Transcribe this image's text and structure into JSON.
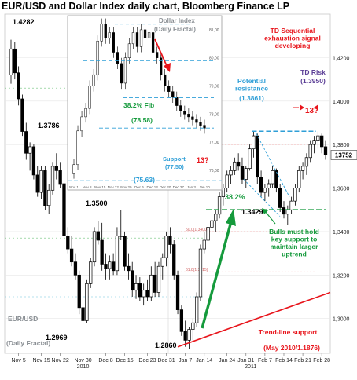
{
  "title": "EUR/USD  and Dollar Index daily chart, Bloomberg Finance LP",
  "chart_data": [
    {
      "type": "candlestick",
      "name": "EUR/USD",
      "caption": "EUR/USD",
      "caption2": "(Daily Fractal)",
      "x_ticks": [
        "Nov 5",
        "Nov 15",
        "Nov 22",
        "Nov 30",
        "Dec 8",
        "Dec 15",
        "Dec 23",
        "Dec 31",
        "Jan 7",
        "Jan 14",
        "Jan 24",
        "Jan 31",
        "Feb 7",
        "Feb 14",
        "Feb 21",
        "Feb 28"
      ],
      "year_labels": [
        "2010",
        "2011"
      ],
      "y_ticks": [
        "1,4200",
        "1,4000",
        "1,3800",
        "1,3600",
        "1,3400",
        "1,3200",
        "1,3000"
      ],
      "ylim": [
        1.284,
        1.44
      ],
      "current_price": "13752",
      "candles": [
        {
          "x": "Nov 3",
          "o": 1.412,
          "h": 1.4282,
          "l": 1.408,
          "c": 1.424
        },
        {
          "x": "Nov 4",
          "o": 1.424,
          "h": 1.427,
          "l": 1.41,
          "c": 1.413
        },
        {
          "x": "Nov 5",
          "o": 1.413,
          "h": 1.416,
          "l": 1.398,
          "c": 1.401
        },
        {
          "x": "Nov 8",
          "o": 1.401,
          "h": 1.403,
          "l": 1.384,
          "c": 1.386
        },
        {
          "x": "Nov 9",
          "o": 1.386,
          "h": 1.39,
          "l": 1.373,
          "c": 1.376
        },
        {
          "x": "Nov 10",
          "o": 1.376,
          "h": 1.381,
          "l": 1.368,
          "c": 1.379
        },
        {
          "x": "Nov 11",
          "o": 1.379,
          "h": 1.38,
          "l": 1.364,
          "c": 1.366
        },
        {
          "x": "Nov 12",
          "o": 1.366,
          "h": 1.37,
          "l": 1.356,
          "c": 1.358
        },
        {
          "x": "Nov 15",
          "o": 1.358,
          "h": 1.37,
          "l": 1.355,
          "c": 1.368
        },
        {
          "x": "Nov 16",
          "o": 1.368,
          "h": 1.37,
          "l": 1.35,
          "c": 1.352
        },
        {
          "x": "Nov 17",
          "o": 1.352,
          "h": 1.362,
          "l": 1.348,
          "c": 1.359
        },
        {
          "x": "Nov 18",
          "o": 1.359,
          "h": 1.372,
          "l": 1.357,
          "c": 1.37
        },
        {
          "x": "Nov 19",
          "o": 1.37,
          "h": 1.376,
          "l": 1.364,
          "c": 1.368
        },
        {
          "x": "Nov 22",
          "o": 1.368,
          "h": 1.372,
          "l": 1.36,
          "c": 1.362
        },
        {
          "x": "Nov 23",
          "o": 1.362,
          "h": 1.364,
          "l": 1.334,
          "c": 1.338
        },
        {
          "x": "Nov 24",
          "o": 1.338,
          "h": 1.342,
          "l": 1.33,
          "c": 1.332
        },
        {
          "x": "Nov 25",
          "o": 1.332,
          "h": 1.338,
          "l": 1.324,
          "c": 1.326
        },
        {
          "x": "Nov 26",
          "o": 1.326,
          "h": 1.33,
          "l": 1.318,
          "c": 1.32
        },
        {
          "x": "Nov 29",
          "o": 1.32,
          "h": 1.322,
          "l": 1.302,
          "c": 1.305
        },
        {
          "x": "Nov 30",
          "o": 1.305,
          "h": 1.31,
          "l": 1.2969,
          "c": 1.299
        },
        {
          "x": "Dec 1",
          "o": 1.299,
          "h": 1.318,
          "l": 1.298,
          "c": 1.316
        },
        {
          "x": "Dec 2",
          "o": 1.316,
          "h": 1.328,
          "l": 1.314,
          "c": 1.326
        },
        {
          "x": "Dec 3",
          "o": 1.326,
          "h": 1.342,
          "l": 1.324,
          "c": 1.34
        },
        {
          "x": "Dec 6",
          "o": 1.34,
          "h": 1.345,
          "l": 1.334,
          "c": 1.336
        },
        {
          "x": "Dec 7",
          "o": 1.336,
          "h": 1.344,
          "l": 1.322,
          "c": 1.325
        },
        {
          "x": "Dec 8",
          "o": 1.325,
          "h": 1.33,
          "l": 1.318,
          "c": 1.323
        },
        {
          "x": "Dec 9",
          "o": 1.323,
          "h": 1.329,
          "l": 1.318,
          "c": 1.326
        },
        {
          "x": "Dec 10",
          "o": 1.326,
          "h": 1.33,
          "l": 1.32,
          "c": 1.322
        },
        {
          "x": "Dec 13",
          "o": 1.322,
          "h": 1.342,
          "l": 1.32,
          "c": 1.338
        },
        {
          "x": "Dec 14",
          "o": 1.338,
          "h": 1.35,
          "l": 1.336,
          "c": 1.338
        },
        {
          "x": "Dec 15",
          "o": 1.338,
          "h": 1.34,
          "l": 1.322,
          "c": 1.324
        },
        {
          "x": "Dec 16",
          "o": 1.324,
          "h": 1.33,
          "l": 1.318,
          "c": 1.322
        },
        {
          "x": "Dec 17",
          "o": 1.322,
          "h": 1.326,
          "l": 1.31,
          "c": 1.313
        },
        {
          "x": "Dec 20",
          "o": 1.313,
          "h": 1.32,
          "l": 1.309,
          "c": 1.316
        },
        {
          "x": "Dec 21",
          "o": 1.316,
          "h": 1.319,
          "l": 1.308,
          "c": 1.31
        },
        {
          "x": "Dec 22",
          "o": 1.31,
          "h": 1.316,
          "l": 1.306,
          "c": 1.313
        },
        {
          "x": "Dec 23",
          "o": 1.313,
          "h": 1.318,
          "l": 1.308,
          "c": 1.31
        },
        {
          "x": "Dec 27",
          "o": 1.31,
          "h": 1.324,
          "l": 1.308,
          "c": 1.32
        },
        {
          "x": "Dec 28",
          "o": 1.32,
          "h": 1.326,
          "l": 1.31,
          "c": 1.312
        },
        {
          "x": "Dec 29",
          "o": 1.312,
          "h": 1.326,
          "l": 1.31,
          "c": 1.324
        },
        {
          "x": "Dec 30",
          "o": 1.324,
          "h": 1.33,
          "l": 1.318,
          "c": 1.328
        },
        {
          "x": "Dec 31",
          "o": 1.328,
          "h": 1.34,
          "l": 1.324,
          "c": 1.338
        },
        {
          "x": "Jan 3",
          "o": 1.338,
          "h": 1.342,
          "l": 1.33,
          "c": 1.334
        },
        {
          "x": "Jan 4",
          "o": 1.334,
          "h": 1.336,
          "l": 1.318,
          "c": 1.32
        },
        {
          "x": "Jan 5",
          "o": 1.32,
          "h": 1.322,
          "l": 1.302,
          "c": 1.304
        },
        {
          "x": "Jan 6",
          "o": 1.304,
          "h": 1.306,
          "l": 1.292,
          "c": 1.294
        },
        {
          "x": "Jan 7",
          "o": 1.294,
          "h": 1.299,
          "l": 1.287,
          "c": 1.29
        },
        {
          "x": "Jan 10",
          "o": 1.29,
          "h": 1.296,
          "l": 1.286,
          "c": 1.295
        },
        {
          "x": "Jan 11",
          "o": 1.295,
          "h": 1.3,
          "l": 1.29,
          "c": 1.298
        },
        {
          "x": "Jan 12",
          "o": 1.298,
          "h": 1.312,
          "l": 1.296,
          "c": 1.31
        },
        {
          "x": "Jan 13",
          "o": 1.31,
          "h": 1.334,
          "l": 1.308,
          "c": 1.332
        },
        {
          "x": "Jan 14",
          "o": 1.332,
          "h": 1.34,
          "l": 1.33,
          "c": 1.336
        },
        {
          "x": "Jan 17",
          "o": 1.336,
          "h": 1.344,
          "l": 1.332,
          "c": 1.342
        },
        {
          "x": "Jan 18",
          "o": 1.342,
          "h": 1.346,
          "l": 1.338,
          "c": 1.345
        },
        {
          "x": "Jan 19",
          "o": 1.345,
          "h": 1.35,
          "l": 1.34,
          "c": 1.348
        },
        {
          "x": "Jan 20",
          "o": 1.348,
          "h": 1.358,
          "l": 1.346,
          "c": 1.356
        },
        {
          "x": "Jan 21",
          "o": 1.356,
          "h": 1.362,
          "l": 1.352,
          "c": 1.36
        },
        {
          "x": "Jan 24",
          "o": 1.36,
          "h": 1.368,
          "l": 1.358,
          "c": 1.366
        },
        {
          "x": "Jan 25",
          "o": 1.366,
          "h": 1.37,
          "l": 1.362,
          "c": 1.368
        },
        {
          "x": "Jan 26",
          "o": 1.368,
          "h": 1.374,
          "l": 1.366,
          "c": 1.372
        },
        {
          "x": "Jan 27",
          "o": 1.372,
          "h": 1.376,
          "l": 1.368,
          "c": 1.37
        },
        {
          "x": "Jan 28",
          "o": 1.37,
          "h": 1.374,
          "l": 1.362,
          "c": 1.364
        },
        {
          "x": "Jan 31",
          "o": 1.364,
          "h": 1.37,
          "l": 1.36,
          "c": 1.369
        },
        {
          "x": "Feb 1",
          "o": 1.369,
          "h": 1.38,
          "l": 1.368,
          "c": 1.378
        },
        {
          "x": "Feb 2",
          "o": 1.378,
          "h": 1.3861,
          "l": 1.374,
          "c": 1.384
        },
        {
          "x": "Feb 3",
          "o": 1.384,
          "h": 1.385,
          "l": 1.362,
          "c": 1.365
        },
        {
          "x": "Feb 4",
          "o": 1.365,
          "h": 1.368,
          "l": 1.356,
          "c": 1.358
        },
        {
          "x": "Feb 7",
          "o": 1.358,
          "h": 1.362,
          "l": 1.354,
          "c": 1.36
        },
        {
          "x": "Feb 8",
          "o": 1.36,
          "h": 1.364,
          "l": 1.356,
          "c": 1.362
        },
        {
          "x": "Feb 9",
          "o": 1.362,
          "h": 1.37,
          "l": 1.36,
          "c": 1.368
        },
        {
          "x": "Feb 10",
          "o": 1.368,
          "h": 1.369,
          "l": 1.358,
          "c": 1.36
        },
        {
          "x": "Feb 11",
          "o": 1.36,
          "h": 1.362,
          "l": 1.349,
          "c": 1.351
        },
        {
          "x": "Feb 14",
          "o": 1.351,
          "h": 1.354,
          "l": 1.346,
          "c": 1.348
        },
        {
          "x": "Feb 15",
          "o": 1.348,
          "h": 1.352,
          "l": 1.3429,
          "c": 1.35
        },
        {
          "x": "Feb 16",
          "o": 1.35,
          "h": 1.356,
          "l": 1.348,
          "c": 1.354
        },
        {
          "x": "Feb 17",
          "o": 1.354,
          "h": 1.362,
          "l": 1.352,
          "c": 1.36
        },
        {
          "x": "Feb 18",
          "o": 1.36,
          "h": 1.37,
          "l": 1.358,
          "c": 1.368
        },
        {
          "x": "Feb 21",
          "o": 1.368,
          "h": 1.372,
          "l": 1.364,
          "c": 1.37
        },
        {
          "x": "Feb 22",
          "o": 1.37,
          "h": 1.376,
          "l": 1.366,
          "c": 1.374
        },
        {
          "x": "Feb 23",
          "o": 1.374,
          "h": 1.382,
          "l": 1.372,
          "c": 1.38
        },
        {
          "x": "Feb 24",
          "o": 1.38,
          "h": 1.384,
          "l": 1.376,
          "c": 1.382
        },
        {
          "x": "Feb 25",
          "o": 1.382,
          "h": 1.386,
          "l": 1.378,
          "c": 1.384
        },
        {
          "x": "Feb 28",
          "o": 1.384,
          "h": 1.385,
          "l": 1.376,
          "c": 1.379
        },
        {
          "x": "Mar 1",
          "o": 1.379,
          "h": 1.382,
          "l": 1.373,
          "c": 1.3752
        }
      ],
      "annotations": {
        "high": "1.4282",
        "level_1": "1.3786",
        "level_2": "1.3500",
        "low_1": "1.2969",
        "low_2": "1.2860",
        "fib": "38.2%",
        "support_level": "1.3429",
        "resistance_title": "Potential\nresistance",
        "resistance_value": "(1.3861)",
        "td_title": "TD Sequential\nexhaustion signal\ndeveloping",
        "td_risk": "TD Risk",
        "td_risk_value": "(1.3950)",
        "count_label": "13?",
        "bulls": "Bulls must hold\nkey support to\nmaintain larger\nuptrend",
        "trendline": "Trend-line support",
        "trendline_value": "(May 2010/1.1876)",
        "fib_levels": [
          "38.2(1.3800)",
          "50.0(1.3400)",
          "61.8(1.3215)"
        ]
      },
      "colors": {
        "red": "#e8141b",
        "blue": "#2f9fd7",
        "green": "#159a3c",
        "purple": "#5b3e96",
        "gray": "#8a8f94"
      }
    },
    {
      "type": "candlestick",
      "name": "Dollar Index",
      "caption": "Dollar Index",
      "caption2": "(Daily Fractal)",
      "x_ticks": [
        "Nov 1",
        "Nov 8",
        "Nov 15",
        "Nov 22",
        "Nov 29",
        "Dec 6",
        "Dec 13",
        "Dec 20",
        "Dec 27",
        "Jan 3",
        "Jan 10"
      ],
      "y_ticks": [
        "81,00",
        "80,00",
        "79,00",
        "78,00",
        "77,00",
        "76,00"
      ],
      "ylim": [
        75.3,
        81.5
      ],
      "values": [
        76.2,
        77.4,
        77.9,
        78.2,
        79.0,
        79.4,
        80.6,
        81.2,
        80.7,
        80.9,
        80.2,
        79.8,
        79.1,
        80.0,
        80.5,
        80.9,
        80.4,
        81.0,
        80.7,
        80.9,
        80.2,
        80.0,
        79.4,
        79.0,
        78.8,
        78.6,
        78.3,
        78.1,
        78.0,
        77.9,
        77.8,
        77.7,
        77.6,
        77.5
      ],
      "annotations": {
        "fib": "38.2% Fib",
        "fib_value": "(78.58)",
        "support": "Support",
        "support_value": "(77.50)",
        "count_label": "13?",
        "low": "(75.63)"
      }
    }
  ]
}
